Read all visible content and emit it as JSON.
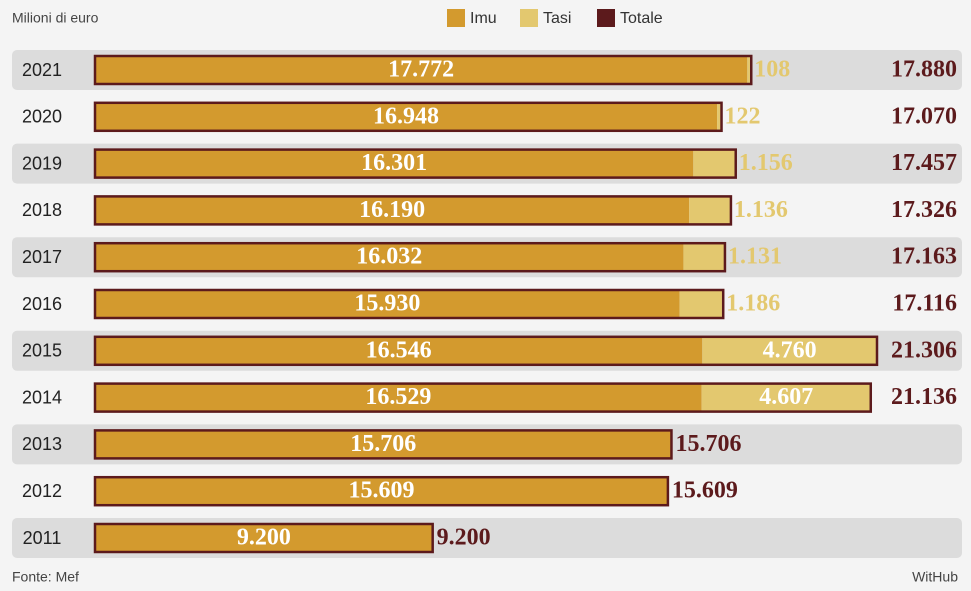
{
  "chart_data": {
    "type": "bar",
    "orientation": "horizontal",
    "stacked": true,
    "subtitle": "Milioni di euro",
    "categories": [
      "2021",
      "2020",
      "2019",
      "2018",
      "2017",
      "2016",
      "2015",
      "2014",
      "2013",
      "2012",
      "2011"
    ],
    "series": [
      {
        "name": "Imu",
        "color": "#d39a2e",
        "values": [
          17772,
          16948,
          16301,
          16190,
          16032,
          15930,
          16546,
          16529,
          15706,
          15609,
          9200
        ],
        "value_labels": [
          "17.772",
          "16.948",
          "16.301",
          "16.190",
          "16.032",
          "15.930",
          "16.546",
          "16.529",
          "15.706",
          "15.609",
          "9.200"
        ]
      },
      {
        "name": "Tasi",
        "color": "#e3c86f",
        "values": [
          108,
          122,
          1156,
          1136,
          1131,
          1186,
          4760,
          4607,
          null,
          null,
          null
        ],
        "value_labels": [
          "108",
          "122",
          "1.156",
          "1.136",
          "1.131",
          "1.186",
          "4.760",
          "4.607",
          null,
          null,
          null
        ]
      },
      {
        "name": "Totale",
        "color": "#5c1a1c",
        "values": [
          17880,
          17070,
          17457,
          17326,
          17163,
          17116,
          21306,
          21136,
          15706,
          15609,
          9200
        ],
        "value_labels": [
          "17.880",
          "17.070",
          "17.457",
          "17.326",
          "17.163",
          "17.116",
          "21.306",
          "21.136",
          "15.706",
          "15.609",
          "9.200"
        ]
      }
    ],
    "source": "Fonte: Mef",
    "credit": "WitHub"
  }
}
